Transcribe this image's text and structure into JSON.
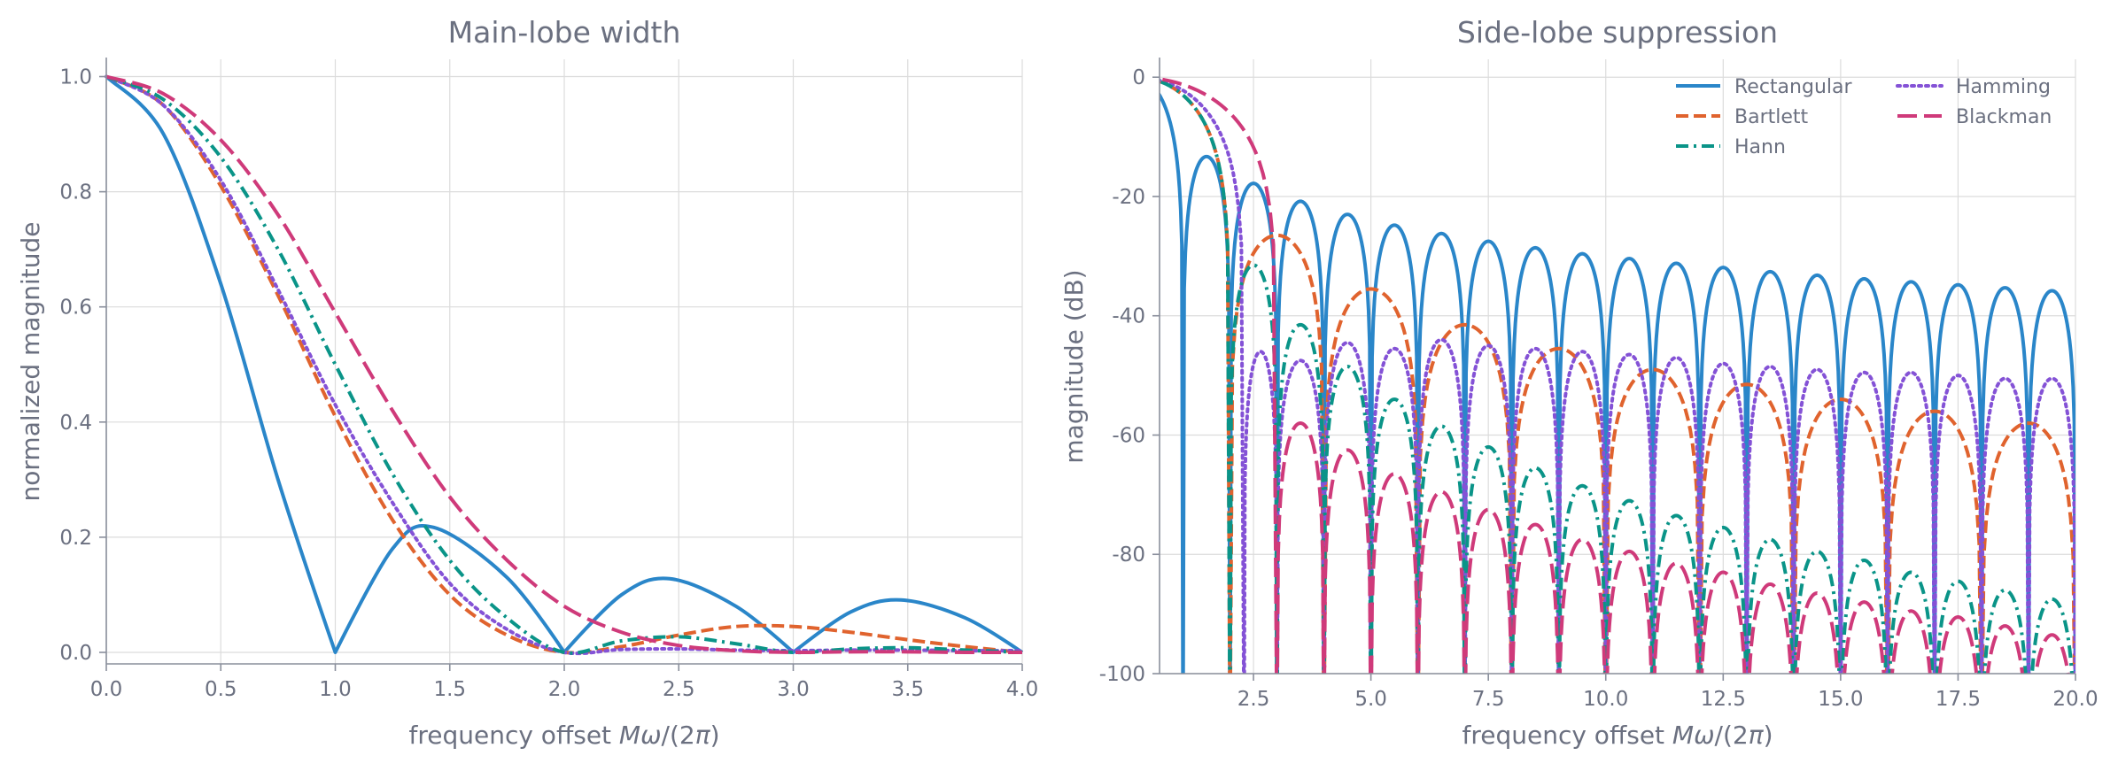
{
  "colors": {
    "Rectangular": "#2a86c9",
    "Bartlett": "#e0632e",
    "Hann": "#0a9488",
    "Hamming": "#8452d6",
    "Blackman": "#cf3a7a",
    "text": "#6b7080",
    "grid": "#dcdcdc"
  },
  "chart_data": [
    {
      "type": "line",
      "title": "Main-lobe width",
      "xlabel": "frequency offset Mω/(2π)",
      "ylabel": "normalized magnitude",
      "xlim": [
        0,
        4
      ],
      "ylim": [
        -0.02,
        1.03
      ],
      "xticks": [
        "0.0",
        "0.5",
        "1.0",
        "1.5",
        "2.0",
        "2.5",
        "3.0",
        "3.5",
        "4.0"
      ],
      "yticks": [
        "0.0",
        "0.2",
        "0.4",
        "0.6",
        "0.8",
        "1.0"
      ],
      "grid": true,
      "legend": null,
      "series": [
        {
          "name": "Rectangular",
          "style": "solid",
          "x": [
            0,
            0.25,
            0.5,
            0.75,
            1.0,
            1.25,
            1.43,
            1.75,
            2.0,
            2.25,
            2.46,
            2.75,
            3.0,
            3.25,
            3.47,
            3.75,
            4.0
          ],
          "y": [
            1.0,
            0.9,
            0.64,
            0.3,
            0.0,
            0.18,
            0.217,
            0.13,
            0.0,
            0.1,
            0.128,
            0.08,
            0.0,
            0.07,
            0.091,
            0.06,
            0.0
          ]
        },
        {
          "name": "Bartlett",
          "style": "dashed",
          "x": [
            0,
            0.25,
            0.5,
            0.75,
            1.0,
            1.25,
            1.5,
            1.75,
            2.0,
            2.25,
            2.5,
            2.75,
            3.0,
            3.25,
            3.5,
            3.75,
            4.0
          ],
          "y": [
            1.0,
            0.95,
            0.81,
            0.62,
            0.41,
            0.23,
            0.1,
            0.03,
            0.0,
            0.01,
            0.03,
            0.045,
            0.045,
            0.035,
            0.022,
            0.01,
            0.0
          ]
        },
        {
          "name": "Hann",
          "style": "dashdot",
          "x": [
            0,
            0.25,
            0.5,
            0.75,
            1.0,
            1.25,
            1.5,
            1.75,
            2.0,
            2.25,
            2.5,
            2.75,
            3.0,
            3.25,
            3.5,
            3.75,
            4.0
          ],
          "y": [
            1.0,
            0.96,
            0.86,
            0.7,
            0.5,
            0.31,
            0.16,
            0.06,
            0.0,
            0.02,
            0.027,
            0.015,
            0.0,
            0.006,
            0.008,
            0.004,
            0.0
          ]
        },
        {
          "name": "Hamming",
          "style": "dotted",
          "x": [
            0,
            0.25,
            0.5,
            0.75,
            1.0,
            1.25,
            1.5,
            1.75,
            2.0,
            2.25,
            2.5,
            2.75,
            3.0,
            3.25,
            3.5,
            3.75,
            4.0
          ],
          "y": [
            1.0,
            0.95,
            0.82,
            0.63,
            0.43,
            0.26,
            0.12,
            0.04,
            0.0,
            0.005,
            0.006,
            0.004,
            0.003,
            0.004,
            0.004,
            0.003,
            0.003
          ]
        },
        {
          "name": "Blackman",
          "style": "longdash",
          "x": [
            0,
            0.25,
            0.5,
            0.75,
            1.0,
            1.25,
            1.5,
            1.75,
            2.0,
            2.25,
            2.5,
            2.75,
            3.0,
            3.25,
            3.5,
            3.75,
            4.0
          ],
          "y": [
            1.0,
            0.97,
            0.89,
            0.76,
            0.59,
            0.42,
            0.27,
            0.16,
            0.08,
            0.035,
            0.012,
            0.003,
            0.0,
            0.001,
            0.001,
            0.0,
            0.0
          ]
        }
      ]
    },
    {
      "type": "line",
      "title": "Side-lobe suppression",
      "xlabel": "frequency offset Mω/(2π)",
      "ylabel": "magnitude (dB)",
      "xlim": [
        0.5,
        20
      ],
      "ylim": [
        -100,
        3
      ],
      "xticks": [
        "2.5",
        "5.0",
        "7.5",
        "10.0",
        "12.5",
        "15.0",
        "17.5",
        "20.0"
      ],
      "yticks": [
        "0",
        "-20",
        "-40",
        "-60",
        "-80",
        "-100"
      ],
      "grid": true,
      "legend": "top-right",
      "series": [
        {
          "name": "Rectangular",
          "style": "solid",
          "peaks": [
            [
              1.43,
              -13.3
            ],
            [
              2.46,
              -17.8
            ],
            [
              3.47,
              -20.8
            ],
            [
              4.48,
              -23.0
            ],
            [
              5.48,
              -24.8
            ],
            [
              6.49,
              -26.2
            ],
            [
              7.49,
              -27.5
            ],
            [
              8.49,
              -28.6
            ],
            [
              9.49,
              -29.6
            ],
            [
              10.49,
              -30.4
            ],
            [
              11.5,
              -31.2
            ],
            [
              12.5,
              -31.9
            ],
            [
              13.5,
              -32.6
            ],
            [
              14.5,
              -33.2
            ],
            [
              15.5,
              -33.8
            ],
            [
              16.5,
              -34.3
            ],
            [
              17.5,
              -34.8
            ],
            [
              18.5,
              -35.3
            ],
            [
              19.5,
              -35.8
            ]
          ],
          "nulls": [
            1,
            2,
            3,
            4,
            5,
            6,
            7,
            8,
            9,
            10,
            11,
            12,
            13,
            14,
            15,
            16,
            17,
            18,
            19,
            20
          ]
        },
        {
          "name": "Bartlett",
          "style": "dashed",
          "peaks": [
            [
              0,
              0
            ],
            [
              2.86,
              -26.5
            ],
            [
              4.92,
              -35.5
            ],
            [
              6.94,
              -41.5
            ],
            [
              8.95,
              -45.5
            ],
            [
              10.96,
              -49.0
            ],
            [
              12.96,
              -51.5
            ],
            [
              14.97,
              -54.0
            ],
            [
              16.97,
              -56.0
            ],
            [
              18.97,
              -58.0
            ]
          ],
          "nulls": [
            2,
            4,
            6,
            8,
            10,
            12,
            14,
            16,
            18,
            20
          ]
        },
        {
          "name": "Hann",
          "style": "dashdot",
          "peaks": [
            [
              0,
              0
            ],
            [
              2.36,
              -31.5
            ],
            [
              3.4,
              -41.5
            ],
            [
              4.4,
              -48.5
            ],
            [
              5.42,
              -54.0
            ],
            [
              6.42,
              -58.5
            ],
            [
              7.43,
              -62.0
            ],
            [
              8.43,
              -65.5
            ],
            [
              9.44,
              -68.5
            ],
            [
              10.44,
              -71.0
            ],
            [
              11.44,
              -73.5
            ],
            [
              12.45,
              -75.5
            ],
            [
              13.45,
              -77.5
            ],
            [
              14.45,
              -79.5
            ],
            [
              15.45,
              -81.0
            ],
            [
              16.45,
              -83.0
            ],
            [
              17.45,
              -84.5
            ],
            [
              18.45,
              -86.0
            ],
            [
              19.45,
              -87.5
            ]
          ],
          "nulls": [
            2,
            3,
            4,
            5,
            6,
            7,
            8,
            9,
            10,
            11,
            12,
            13,
            14,
            15,
            16,
            17,
            18,
            19,
            20
          ]
        },
        {
          "name": "Hamming",
          "style": "dotted",
          "peaks": [
            [
              0,
              0
            ],
            [
              2.4,
              -46
            ],
            [
              3.4,
              -47.5
            ],
            [
              4.45,
              -44.5
            ],
            [
              5.45,
              -45.5
            ],
            [
              6.45,
              -44.0
            ],
            [
              7.45,
              -45.0
            ],
            [
              8.45,
              -45.5
            ],
            [
              9.45,
              -46.0
            ],
            [
              10.45,
              -46.5
            ],
            [
              11.45,
              -47.0
            ],
            [
              12.45,
              -48.0
            ],
            [
              13.45,
              -48.5
            ],
            [
              14.45,
              -49.0
            ],
            [
              15.45,
              -49.5
            ],
            [
              16.45,
              -49.5
            ],
            [
              17.45,
              -50.0
            ],
            [
              18.45,
              -50.5
            ],
            [
              19.45,
              -50.5
            ]
          ],
          "nulls": [
            2.3,
            3,
            4,
            5,
            6,
            7,
            8,
            9,
            10,
            11,
            12,
            13,
            14,
            15,
            16,
            17,
            18,
            19,
            20
          ]
        },
        {
          "name": "Blackman",
          "style": "longdash",
          "peaks": [
            [
              0,
              0
            ],
            [
              3.5,
              -58.0
            ],
            [
              4.5,
              -62.5
            ],
            [
              5.5,
              -66.5
            ],
            [
              6.5,
              -69.5
            ],
            [
              7.5,
              -72.5
            ],
            [
              8.5,
              -75.0
            ],
            [
              9.5,
              -77.5
            ],
            [
              10.5,
              -79.5
            ],
            [
              11.5,
              -81.5
            ],
            [
              12.5,
              -83.0
            ],
            [
              13.5,
              -85.0
            ],
            [
              14.5,
              -86.5
            ],
            [
              15.5,
              -88.0
            ],
            [
              16.5,
              -89.5
            ],
            [
              17.5,
              -90.5
            ],
            [
              18.5,
              -92.0
            ],
            [
              19.5,
              -93.5
            ]
          ],
          "nulls": [
            3,
            4,
            5,
            6,
            7,
            8,
            9,
            10,
            11,
            12,
            13,
            14,
            15,
            16,
            17,
            18,
            19,
            20
          ]
        }
      ]
    }
  ],
  "legend": {
    "items": [
      {
        "label": "Rectangular",
        "style": "solid",
        "color_key": "Rectangular"
      },
      {
        "label": "Bartlett",
        "style": "dashed",
        "color_key": "Bartlett"
      },
      {
        "label": "Hann",
        "style": "dashdot",
        "color_key": "Hann"
      },
      {
        "label": "Hamming",
        "style": "dotted",
        "color_key": "Hamming"
      },
      {
        "label": "Blackman",
        "style": "longdash",
        "color_key": "Blackman"
      }
    ]
  }
}
